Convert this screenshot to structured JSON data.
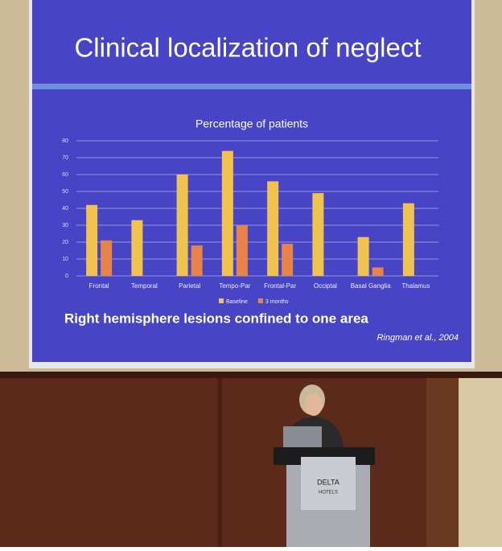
{
  "slide_title": "Clinical localization of neglect",
  "chart_data": {
    "type": "bar",
    "title": "Percentage of patients",
    "categories": [
      "Frontal",
      "Temporal",
      "Parietal",
      "Tempo-Par",
      "Frontal-Par",
      "Occiptal",
      "Basal Ganglia",
      "Thalamus"
    ],
    "series": [
      {
        "name": "Baseline",
        "color": "#f0c24e",
        "values": [
          42,
          33,
          60,
          74,
          56,
          49,
          23,
          43
        ]
      },
      {
        "name": "3 months",
        "color": "#e8844a",
        "values": [
          21,
          null,
          18,
          30,
          19,
          null,
          5,
          null
        ]
      }
    ],
    "ylim": [
      0,
      80
    ],
    "yticks": [
      0,
      10,
      20,
      30,
      40,
      50,
      60,
      70,
      80
    ],
    "grid": true,
    "legend": "bottom"
  },
  "caption": "Right hemisphere lesions confined to one area",
  "citation": "Ringman et al., 2004",
  "podium_sign": {
    "brand": "DELTA",
    "line2": "HOTELS"
  }
}
